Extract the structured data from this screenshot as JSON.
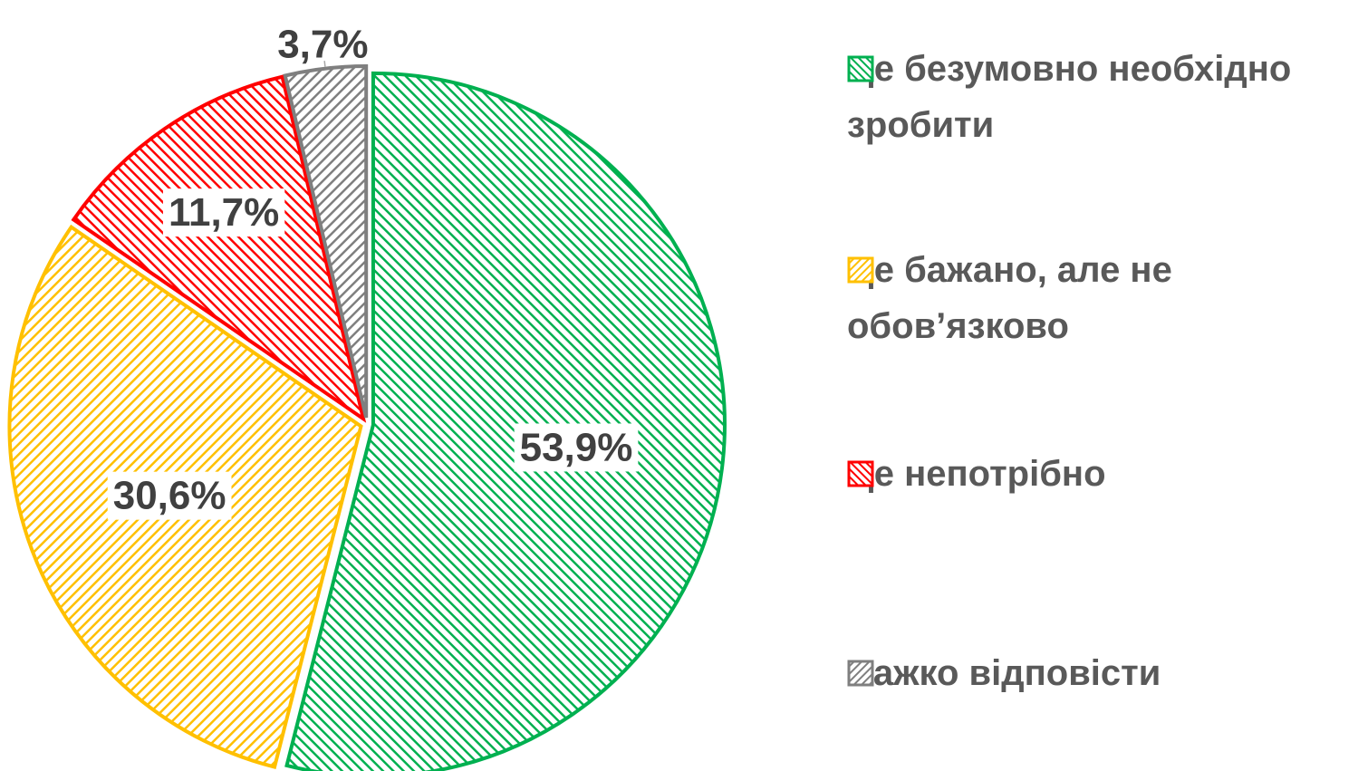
{
  "chart_data": {
    "type": "pie",
    "categories": [
      "Це безумовно необхідно зробити",
      "Це бажано, але не обов’язково",
      "Це непотрібно",
      "Важко відповісти"
    ],
    "values": [
      53.9,
      30.6,
      11.7,
      3.7
    ],
    "value_labels": [
      "53,9%",
      "30,6%",
      "11,7%",
      "3,7%"
    ],
    "colors": [
      "#00b050",
      "#ffc000",
      "#ff0000",
      "#7f7f7f"
    ],
    "legend": "right"
  }
}
